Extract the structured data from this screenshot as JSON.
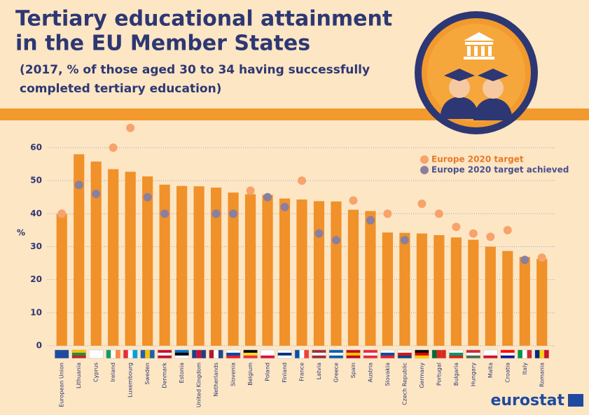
{
  "chart_data": {
    "type": "bar",
    "title_line1": "Tertiary educational attainment",
    "title_line2": "in the EU Member States",
    "subtitle_line1": "(2017, % of those aged 30 to 34 having successfully",
    "subtitle_line2": "completed tertiary education)",
    "y_label": "%",
    "logo": "eurostat",
    "categories": [
      "European Union",
      "Lithuania",
      "Cyprus",
      "Ireland",
      "Luxembourg",
      "Sweden",
      "Denmark",
      "Estonia",
      "United Kingdom",
      "Netherlands",
      "Slovenia",
      "Belgium",
      "Poland",
      "Finland",
      "France",
      "Latvia",
      "Greece",
      "Spain",
      "Austria",
      "Slovakia",
      "Czech Republic",
      "Germany",
      "Portugal",
      "Bulgaria",
      "Hungary",
      "Malta",
      "Croatia",
      "Italy",
      "Romania"
    ],
    "values": [
      39.9,
      58.0,
      55.8,
      53.5,
      52.7,
      51.3,
      48.8,
      48.4,
      48.3,
      47.9,
      46.4,
      45.9,
      45.7,
      44.6,
      44.3,
      43.8,
      43.7,
      41.2,
      40.8,
      34.3,
      34.2,
      34.0,
      33.5,
      32.8,
      32.1,
      30.0,
      28.7,
      26.9,
      26.3
    ],
    "color": "#f0912a",
    "target_series": [
      {
        "name": "Europe 2020 target",
        "color": "#f7a36b",
        "values": [
          40,
          null,
          null,
          60,
          66,
          null,
          null,
          null,
          null,
          null,
          null,
          47,
          null,
          null,
          50,
          null,
          null,
          44,
          null,
          40,
          null,
          43,
          40,
          36,
          34,
          33,
          35,
          null,
          26.7
        ]
      },
      {
        "name": "Europe 2020 target achieved",
        "color": "#8a7f9e",
        "values": [
          null,
          48.7,
          46,
          null,
          null,
          45,
          40,
          null,
          null,
          40,
          40,
          null,
          45,
          42,
          null,
          34,
          32,
          null,
          38,
          null,
          32,
          null,
          null,
          null,
          null,
          null,
          null,
          26,
          null
        ]
      }
    ],
    "ylim": [
      0,
      60
    ],
    "yticks": [
      0,
      10,
      20,
      30,
      40,
      50,
      60
    ],
    "grid": true
  }
}
